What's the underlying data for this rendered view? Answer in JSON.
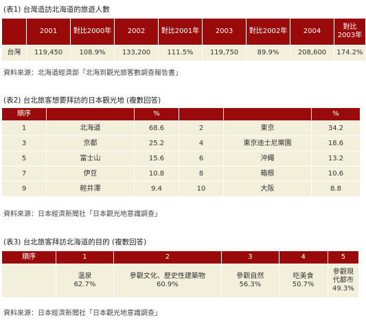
{
  "table1": {
    "title": "(表1) 台灣造訪北海道的旅遊人數",
    "headers": [
      "",
      "2001",
      "對比2000年",
      "2002",
      "對比2001年",
      "2003",
      "對比2002年",
      "2004",
      "對比2003年"
    ],
    "row": [
      "台灣",
      "119,450",
      "108.9%",
      "133,200",
      "111.5%",
      "119,750",
      "89.9%",
      "208,600",
      "174.2%"
    ],
    "source": "資料來源：北海道經濟部「北海到觀光旅客數調查報告書」"
  },
  "table2": {
    "title": "(表2) 台北旅客想要拜訪的日本觀光地 (複數回答)",
    "headers": [
      "順序",
      "",
      "%",
      "",
      "",
      "%"
    ],
    "rows": [
      [
        "1",
        "北海道",
        "68.6",
        "2",
        "東京",
        "34.2"
      ],
      [
        "3",
        "京都",
        "25.2",
        "4",
        "東京迪士尼樂園",
        "18.6"
      ],
      [
        "5",
        "富士山",
        "15.6",
        "6",
        "沖繩",
        "13.2"
      ],
      [
        "7",
        "伊豆",
        "10.8",
        "8",
        "箱根",
        "10.6"
      ],
      [
        "9",
        "輕井澤",
        "9.4",
        "10",
        "大阪",
        "8.8"
      ]
    ],
    "source": "資料來源：日本經濟新聞社「日本觀光地意識調查」"
  },
  "table3": {
    "title": "(表3) 台北旅客拜訪北海道的目的 (複數回答)",
    "headers": [
      "順序",
      "1",
      "2",
      "3",
      "4",
      "5"
    ],
    "items": [
      {
        "label": "溫泉",
        "pct": "62.7%"
      },
      {
        "label": "參觀文化、歷史性建築物",
        "pct": "60.9%"
      },
      {
        "label": "參觀自然",
        "pct": "56.3%"
      },
      {
        "label": "吃美食",
        "pct": "50.7%"
      },
      {
        "label_line1": "參觀現",
        "label_line2": "代都市",
        "pct": "49.3%"
      }
    ],
    "source": "資料來源：日本經濟新聞社「日本觀光地意識調查」"
  },
  "colors": {
    "header_bg": "#9b0a0a",
    "cell_bg": "#f2efda"
  }
}
